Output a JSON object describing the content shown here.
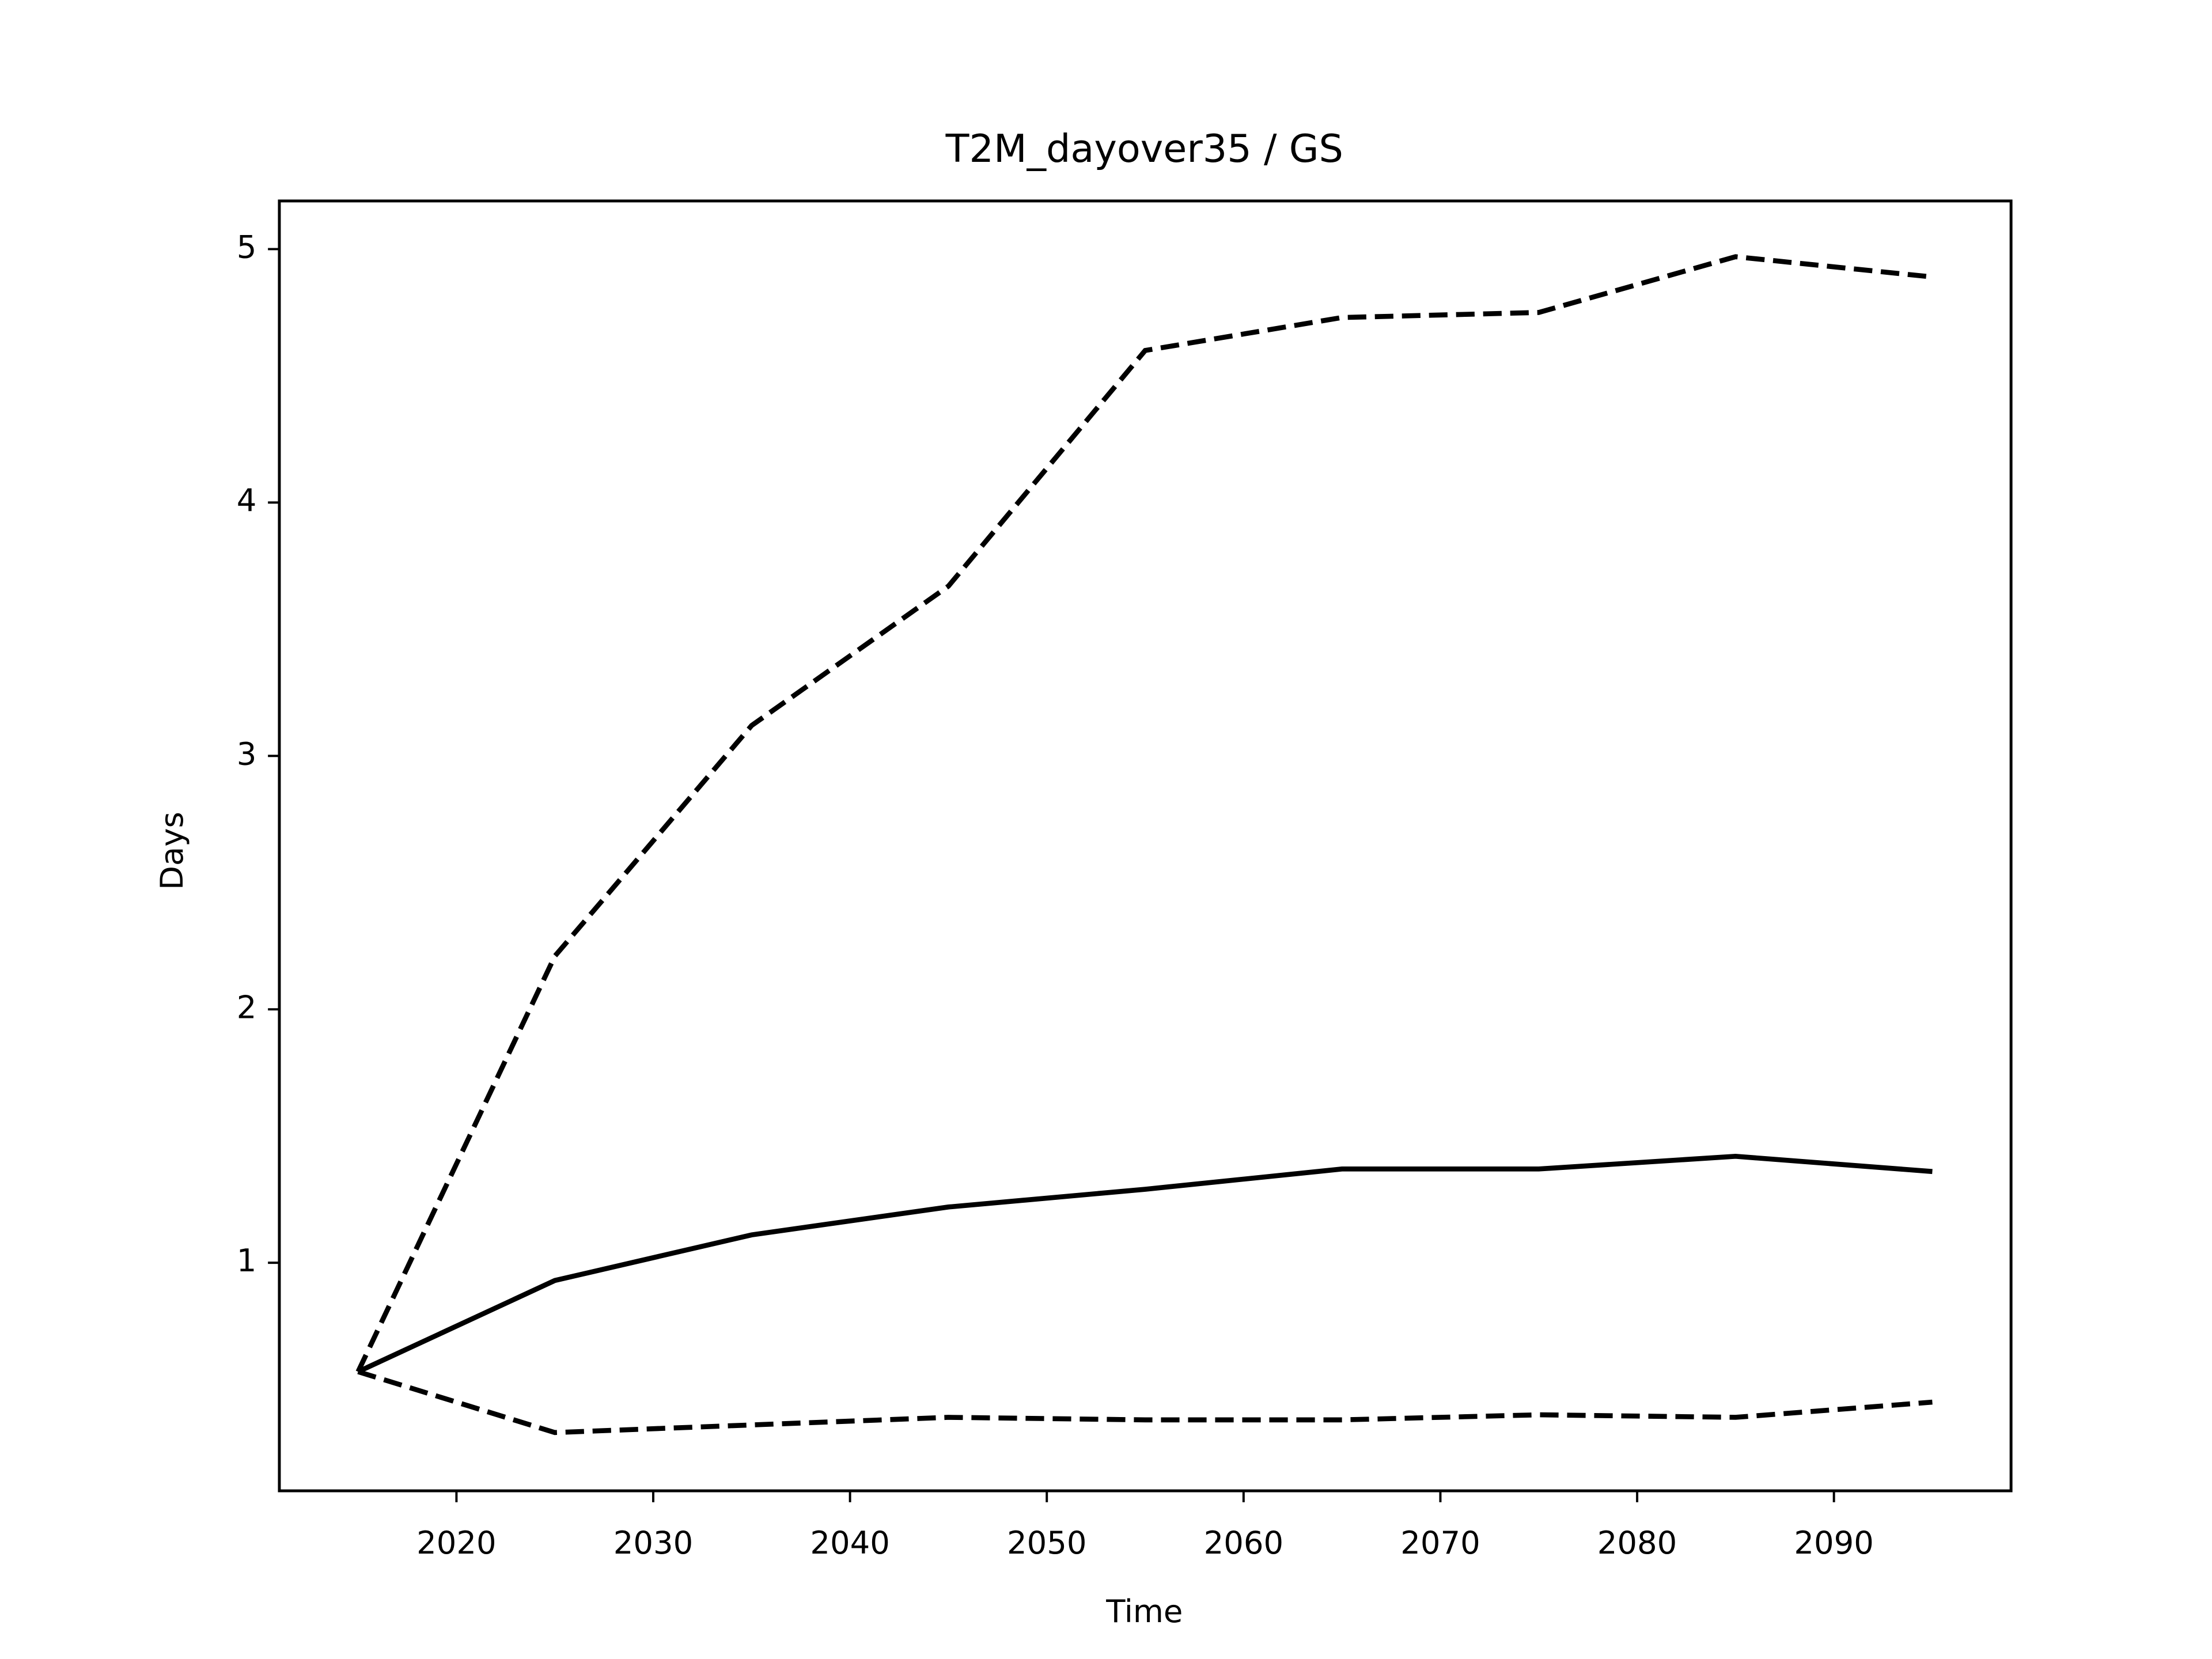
{
  "chart_data": {
    "type": "line",
    "title": "T2M_dayover35 / GS",
    "x_label": "Time",
    "y_label": "Days",
    "x": [
      2015,
      2025,
      2035,
      2045,
      2055,
      2065,
      2075,
      2085,
      2095
    ],
    "series": [
      {
        "color": "#000000",
        "dash": false,
        "values": [
          0.57,
          0.93,
          1.11,
          1.22,
          1.29,
          1.37,
          1.37,
          1.42,
          1.36
        ]
      },
      {
        "color": "#000000",
        "dash": true,
        "values": [
          0.57,
          2.21,
          3.12,
          3.67,
          4.6,
          4.73,
          4.75,
          4.97,
          4.89
        ]
      },
      {
        "color": "#000000",
        "dash": true,
        "values": [
          0.57,
          0.33,
          0.36,
          0.39,
          0.38,
          0.38,
          0.4,
          0.39,
          0.45
        ]
      }
    ],
    "xlim": [
      2011,
      2099
    ],
    "xticks": [
      2020,
      2030,
      2040,
      2050,
      2060,
      2070,
      2080,
      2090
    ],
    "ylim": [
      0.1,
      5.19
    ],
    "yticks": [
      1,
      2,
      3,
      4,
      5
    ],
    "grid": false
  }
}
